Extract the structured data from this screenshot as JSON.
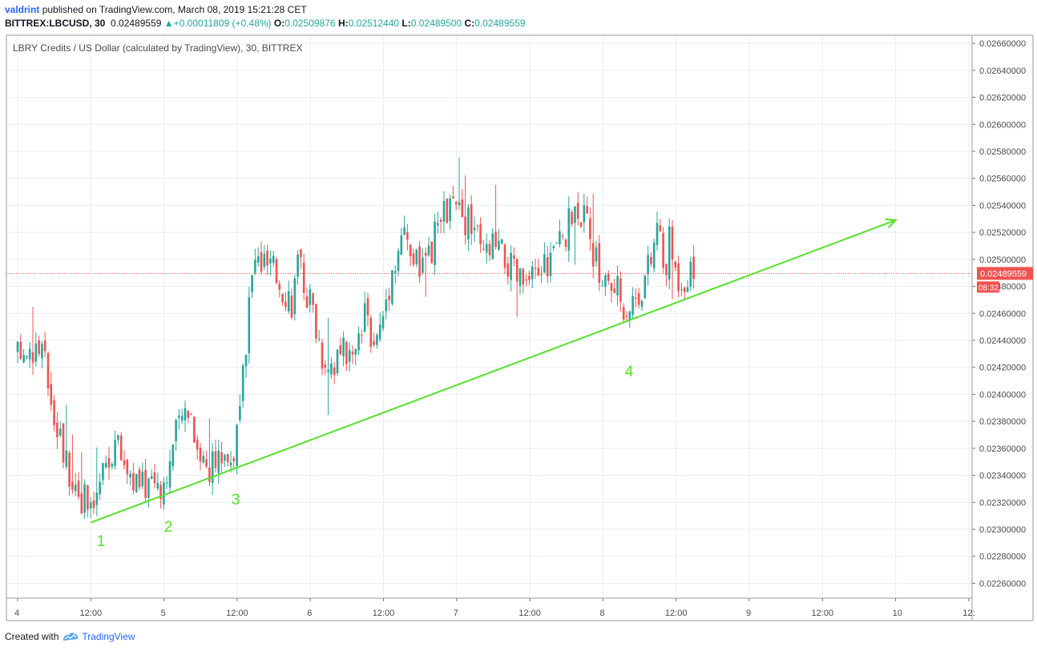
{
  "header": {
    "author": "valdrint",
    "published_text": "published on TradingView.com, March 08, 2019 15:21:28 CET",
    "symbol": "BITTREX:LBCUSD, 30",
    "last": "0.02489559",
    "change": "+0.00011809 (+0.48%)",
    "o_label": "O:",
    "o_value": "0.02509876",
    "h_label": "H:",
    "h_value": "0.02512440",
    "l_label": "L:",
    "l_value": "0.02489500",
    "c_label": "C:",
    "c_value": "0.02489559"
  },
  "legend_title": "LBRY Credits / US Dollar (calculated by TradingView), 30, BITTREX",
  "footer": {
    "created_with": "Created with",
    "brand": "TradingView"
  },
  "colors": {
    "up": "#26a69a",
    "down": "#ef5350",
    "trendline": "#55e02a",
    "grid": "#e8eef5",
    "price_line": "#ef5350"
  },
  "chart_data": {
    "type": "candlestick",
    "y_ticks": [
      "0.02660000",
      "0.02640000",
      "0.02620000",
      "0.02600000",
      "0.02580000",
      "0.02560000",
      "0.02540000",
      "0.02520000",
      "0.02500000",
      "0.02480000",
      "0.02460000",
      "0.02440000",
      "0.02420000",
      "0.02400000",
      "0.02380000",
      "0.02360000",
      "0.02340000",
      "0.02320000",
      "0.02300000",
      "0.02280000",
      "0.02260000"
    ],
    "y_range": [
      0.02249,
      0.02666
    ],
    "x_ticks": [
      "4",
      "12:00",
      "5",
      "12:00",
      "6",
      "12:00",
      "7",
      "12:00",
      "8",
      "12:00",
      "9",
      "12:00",
      "10",
      "12:"
    ],
    "last_price_label": "0.02489559",
    "countdown_label": "08:32",
    "trendline": {
      "from": {
        "x": "4 Mar 12:00",
        "y": 0.02305
      },
      "to": {
        "x": "10 Mar 00:00",
        "y": 0.02529
      }
    },
    "wave_labels": [
      "1",
      "2",
      "3",
      "4"
    ],
    "path": [
      {
        "x": "4 Mar 00:00",
        "y": 0.02428
      },
      {
        "x": "4 Mar 02:00",
        "y": 0.02436
      },
      {
        "x": "4 Mar 04:00",
        "y": 0.02432
      },
      {
        "x": "4 Mar 05:30",
        "y": 0.024
      },
      {
        "x": "4 Mar 08:00",
        "y": 0.0235
      },
      {
        "x": "4 Mar 10:00",
        "y": 0.0233
      },
      {
        "x": "4 Mar 12:00",
        "y": 0.0231
      },
      {
        "x": "4 Mar 14:00",
        "y": 0.0234
      },
      {
        "x": "4 Mar 16:00",
        "y": 0.02365
      },
      {
        "x": "4 Mar 18:00",
        "y": 0.02345
      },
      {
        "x": "4 Mar 20:00",
        "y": 0.0233
      },
      {
        "x": "4 Mar 22:00",
        "y": 0.0234
      },
      {
        "x": "5 Mar 00:00",
        "y": 0.02335
      },
      {
        "x": "5 Mar 02:00",
        "y": 0.0237
      },
      {
        "x": "5 Mar 04:00",
        "y": 0.02395
      },
      {
        "x": "5 Mar 06:00",
        "y": 0.02355
      },
      {
        "x": "5 Mar 08:00",
        "y": 0.02345
      },
      {
        "x": "5 Mar 10:00",
        "y": 0.0236
      },
      {
        "x": "5 Mar 11:00",
        "y": 0.0235
      },
      {
        "x": "5 Mar 12:00",
        "y": 0.0237
      },
      {
        "x": "5 Mar 13:00",
        "y": 0.0241
      },
      {
        "x": "5 Mar 14:00",
        "y": 0.0247
      },
      {
        "x": "5 Mar 15:00",
        "y": 0.025
      },
      {
        "x": "5 Mar 17:00",
        "y": 0.02495
      },
      {
        "x": "5 Mar 19:00",
        "y": 0.02485
      },
      {
        "x": "5 Mar 21:00",
        "y": 0.0247
      },
      {
        "x": "5 Mar 22:00",
        "y": 0.02495
      },
      {
        "x": "6 Mar 00:00",
        "y": 0.0247
      },
      {
        "x": "6 Mar 02:00",
        "y": 0.0243
      },
      {
        "x": "6 Mar 04:00",
        "y": 0.02425
      },
      {
        "x": "6 Mar 06:00",
        "y": 0.0243
      },
      {
        "x": "6 Mar 07:00",
        "y": 0.02422
      },
      {
        "x": "6 Mar 09:00",
        "y": 0.02455
      },
      {
        "x": "6 Mar 11:00",
        "y": 0.0244
      },
      {
        "x": "6 Mar 13:00",
        "y": 0.02485
      },
      {
        "x": "6 Mar 15:00",
        "y": 0.0252
      },
      {
        "x": "6 Mar 17:00",
        "y": 0.025
      },
      {
        "x": "6 Mar 19:00",
        "y": 0.0249
      },
      {
        "x": "6 Mar 21:00",
        "y": 0.02525
      },
      {
        "x": "6 Mar 23:00",
        "y": 0.0254
      },
      {
        "x": "7 Mar 01:00",
        "y": 0.0253
      },
      {
        "x": "7 Mar 03:00",
        "y": 0.02525
      },
      {
        "x": "7 Mar 04:00",
        "y": 0.025
      },
      {
        "x": "7 Mar 06:00",
        "y": 0.0251
      },
      {
        "x": "7 Mar 08:00",
        "y": 0.025
      },
      {
        "x": "7 Mar 10:00",
        "y": 0.02485
      },
      {
        "x": "7 Mar 12:00",
        "y": 0.0248
      },
      {
        "x": "7 Mar 14:00",
        "y": 0.02495
      },
      {
        "x": "7 Mar 16:00",
        "y": 0.02505
      },
      {
        "x": "7 Mar 18:00",
        "y": 0.0252
      },
      {
        "x": "7 Mar 20:00",
        "y": 0.02545
      },
      {
        "x": "7 Mar 22:00",
        "y": 0.0251
      },
      {
        "x": "8 Mar 00:00",
        "y": 0.02485
      },
      {
        "x": "8 Mar 02:00",
        "y": 0.02478
      },
      {
        "x": "8 Mar 04:00",
        "y": 0.02465
      },
      {
        "x": "8 Mar 06:00",
        "y": 0.02478
      },
      {
        "x": "8 Mar 08:00",
        "y": 0.025
      },
      {
        "x": "8 Mar 09:00",
        "y": 0.0253
      },
      {
        "x": "8 Mar 10:00",
        "y": 0.0249
      },
      {
        "x": "8 Mar 11:00",
        "y": 0.02515
      },
      {
        "x": "8 Mar 12:00",
        "y": 0.02488
      },
      {
        "x": "8 Mar 14:00",
        "y": 0.0249
      },
      {
        "x": "8 Mar 15:00",
        "y": 0.0249
      }
    ]
  }
}
